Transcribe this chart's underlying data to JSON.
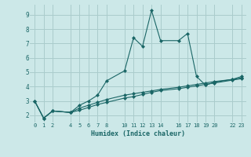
{
  "xlabel": "Humidex (Indice chaleur)",
  "bg_color": "#cce8e8",
  "grid_color": "#aacccc",
  "line_color": "#1a6666",
  "x_ticks": [
    0,
    1,
    2,
    4,
    5,
    6,
    7,
    8,
    10,
    11,
    12,
    13,
    14,
    16,
    17,
    18,
    19,
    20,
    22,
    23
  ],
  "y_ticks": [
    2,
    3,
    4,
    5,
    6,
    7,
    8,
    9
  ],
  "ylim": [
    1.5,
    9.7
  ],
  "xlim": [
    -0.5,
    23.5
  ],
  "series": [
    {
      "x": [
        0,
        1,
        2,
        4,
        5,
        6,
        7,
        8,
        10,
        11,
        12,
        13,
        14,
        16,
        17,
        18,
        19,
        20,
        22,
        23
      ],
      "y": [
        3.0,
        1.8,
        2.3,
        2.2,
        2.7,
        3.0,
        3.4,
        4.4,
        5.1,
        7.4,
        6.8,
        9.3,
        7.2,
        7.2,
        7.7,
        4.7,
        4.1,
        4.3,
        4.5,
        4.7
      ]
    },
    {
      "x": [
        0,
        1,
        2,
        4,
        5,
        6,
        7,
        8,
        10,
        11,
        12,
        13,
        14,
        16,
        17,
        18,
        19,
        20,
        22,
        23
      ],
      "y": [
        3.0,
        1.8,
        2.3,
        2.2,
        2.5,
        2.7,
        2.9,
        3.1,
        3.4,
        3.5,
        3.6,
        3.7,
        3.8,
        3.95,
        4.05,
        4.15,
        4.25,
        4.35,
        4.5,
        4.6
      ]
    },
    {
      "x": [
        0,
        1,
        2,
        4,
        5,
        6,
        7,
        8,
        10,
        11,
        12,
        13,
        14,
        16,
        17,
        18,
        19,
        20,
        22,
        23
      ],
      "y": [
        3.0,
        1.8,
        2.3,
        2.2,
        2.35,
        2.55,
        2.75,
        2.9,
        3.2,
        3.3,
        3.45,
        3.6,
        3.72,
        3.85,
        3.95,
        4.05,
        4.15,
        4.25,
        4.45,
        4.55
      ]
    }
  ]
}
